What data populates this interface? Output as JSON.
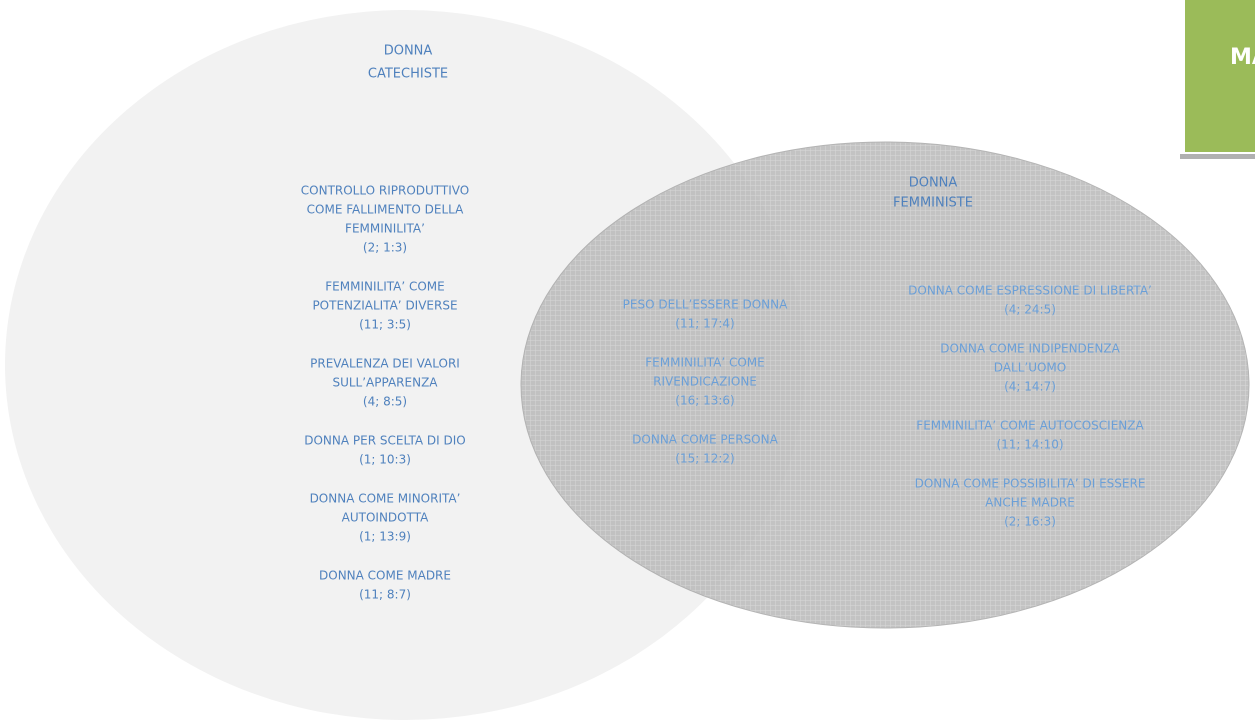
{
  "badge": "MATE",
  "left_set": {
    "title": [
      "DONNA",
      "CATECHISTE"
    ],
    "items": [
      {
        "lines": [
          "CONTROLLO RIPRODUTTIVO",
          "COME FALLIMENTO DELLA",
          "FEMMINILITA’"
        ],
        "ref": "(2; 1:3)"
      },
      {
        "lines": [
          "FEMMINILITA’ COME",
          "POTENZIALITA’ DIVERSE"
        ],
        "ref": "(11; 3:5)"
      },
      {
        "lines": [
          "PREVALENZA DEI VALORI",
          "SULL’APPARENZA"
        ],
        "ref": "(4; 8:5)"
      },
      {
        "lines": [
          "DONNA PER SCELTA DI DIO"
        ],
        "ref": "(1; 10:3)"
      },
      {
        "lines": [
          "DONNA COME MINORITA’",
          "AUTOINDOTTA"
        ],
        "ref": "(1; 13:9)"
      },
      {
        "lines": [
          "DONNA COME MADRE"
        ],
        "ref": "(11; 8:7)"
      }
    ]
  },
  "intersection": {
    "items": [
      {
        "lines": [
          "PESO DELL’ESSERE DONNA"
        ],
        "ref": "(11; 17:4)"
      },
      {
        "lines": [
          "FEMMINILITA’ COME",
          "RIVENDICAZIONE"
        ],
        "ref": "(16; 13:6)"
      },
      {
        "lines": [
          "DONNA COME PERSONA"
        ],
        "ref": "(15; 12:2)"
      }
    ]
  },
  "right_set": {
    "title": [
      "DONNA",
      "FEMMINISTE"
    ],
    "items": [
      {
        "lines": [
          "DONNA COME ESPRESSIONE DI LIBERTA’"
        ],
        "ref": "(4; 24:5)"
      },
      {
        "lines": [
          "DONNA COME INDIPENDENZA",
          "DALL’UOMO"
        ],
        "ref": "(4; 14:7)"
      },
      {
        "lines": [
          "FEMMINILITA’ COME AUTOCOSCIENZA"
        ],
        "ref": "(11; 14:10)"
      },
      {
        "lines": [
          "DONNA COME POSSIBILITA’ DI ESSERE",
          "ANCHE MADRE"
        ],
        "ref": "(2; 16:3)"
      }
    ]
  }
}
